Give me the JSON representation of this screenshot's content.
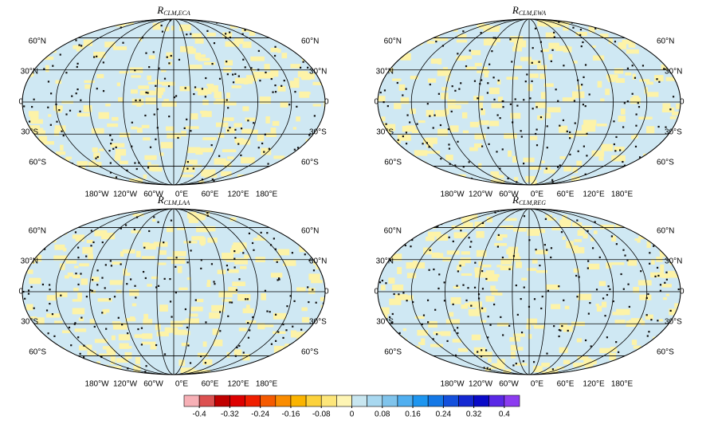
{
  "panels": [
    {
      "title": {
        "main": "R",
        "sub": "CLM,ECA"
      }
    },
    {
      "title": {
        "main": "R",
        "sub": "CLM,EWA"
      }
    },
    {
      "title": {
        "main": "R",
        "sub": "CLM,LAA"
      }
    },
    {
      "title": {
        "main": "R",
        "sub": "CLM,REG"
      }
    }
  ],
  "lat_labels": [
    "60°N",
    "30°N",
    "0",
    "30°S",
    "60°S"
  ],
  "lon_labels": [
    "180°W",
    "120°W",
    "60°W",
    "0°E",
    "60°E",
    "120°E",
    "180°E"
  ],
  "colorbar": {
    "clim": [
      -0.44,
      0.44
    ],
    "colors": [
      "#f7b0b6",
      "#dc5050",
      "#c00000",
      "#dd0000",
      "#f01e00",
      "#f55a00",
      "#fa8c00",
      "#fbb400",
      "#fcd23c",
      "#fde67a",
      "#fef5b4",
      "#c8e6f0",
      "#a8d8f0",
      "#80c4ec",
      "#50aff0",
      "#1e96f0",
      "#1478e6",
      "#1450dc",
      "#1428d2",
      "#0a0ac8",
      "#5a28e6",
      "#8c3cf0"
    ],
    "ticks": [
      -0.4,
      -0.32,
      -0.24,
      -0.16,
      -0.08,
      0,
      0.08,
      0.16,
      0.24,
      0.32,
      0.4
    ]
  }
}
